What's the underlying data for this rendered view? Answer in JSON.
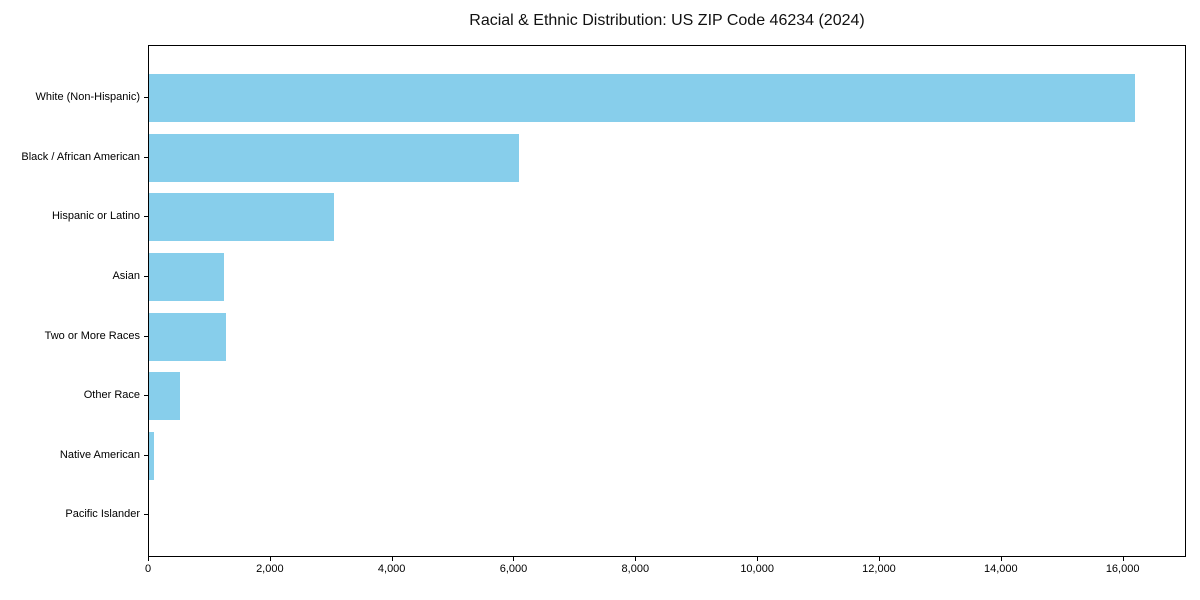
{
  "title": "Racial & Ethnic Distribution: US ZIP Code 46234 (2024)",
  "chart_data": {
    "type": "bar",
    "orientation": "horizontal",
    "title": "Racial & Ethnic Distribution: US ZIP Code 46234 (2024)",
    "xlabel": "",
    "ylabel": "",
    "categories": [
      "White (Non-Hispanic)",
      "Black / African American",
      "Hispanic or Latino",
      "Asian",
      "Two or More Races",
      "Other Race",
      "Native American",
      "Pacific Islander"
    ],
    "values": [
      16225,
      6085,
      3040,
      1230,
      1260,
      510,
      75,
      0
    ],
    "xlim": [
      0,
      17040
    ],
    "xticks": [
      0,
      2000,
      4000,
      6000,
      8000,
      10000,
      12000,
      14000,
      16000
    ],
    "xtick_labels": [
      "0",
      "2,000",
      "4,000",
      "6,000",
      "8,000",
      "10,000",
      "12,000",
      "14,000",
      "16,000"
    ],
    "bar_color": "#87CEEB",
    "grid": false,
    "legend": null,
    "background_color": "#ffffff",
    "spine_color": "#000000",
    "text_color": "#000000"
  }
}
